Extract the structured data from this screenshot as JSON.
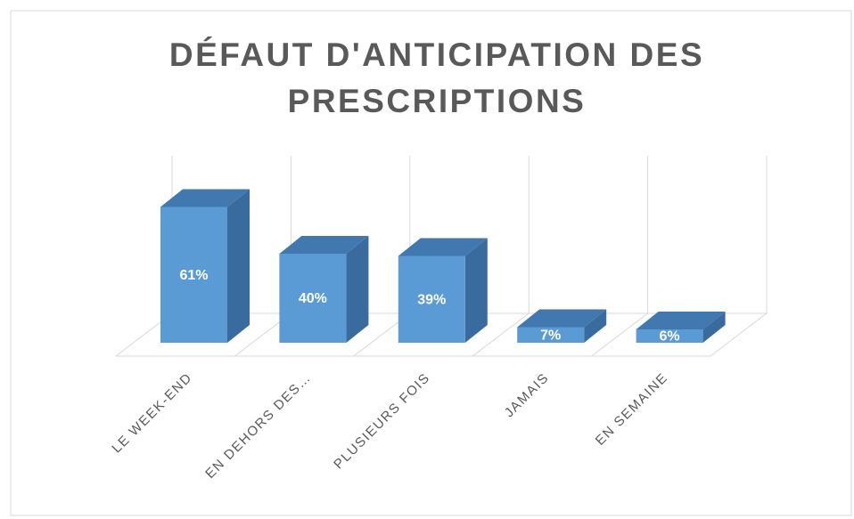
{
  "chart_data": {
    "type": "bar3d",
    "title": "DÉFAUT D'ANTICIPATION DES PRESCRIPTIONS",
    "categories": [
      "LE WEEK-END",
      "EN DEHORS DES…",
      "PLUSIEURS FOIS",
      "JAMAIS",
      "EN SEMAINE"
    ],
    "values": [
      61,
      40,
      39,
      7,
      6
    ],
    "value_labels": [
      "61%",
      "40%",
      "39%",
      "7%",
      "6%"
    ],
    "color": "#5b9bd5"
  }
}
